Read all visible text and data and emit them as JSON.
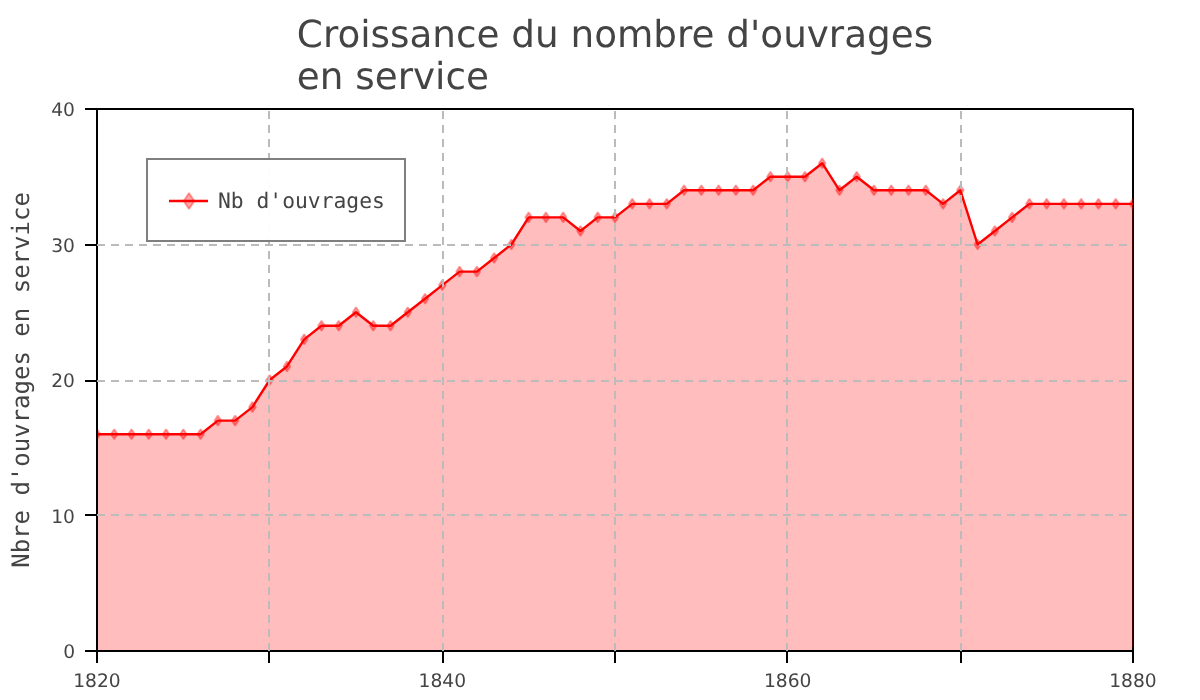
{
  "chart_data": {
    "type": "area",
    "title": "Croissance du nombre d'ouvrages\nen service",
    "ylabel": "Nbre d'ouvrages en service",
    "x": [
      1820,
      1821,
      1822,
      1823,
      1824,
      1825,
      1826,
      1827,
      1828,
      1829,
      1830,
      1831,
      1832,
      1833,
      1834,
      1835,
      1836,
      1837,
      1838,
      1839,
      1840,
      1841,
      1842,
      1843,
      1844,
      1845,
      1846,
      1847,
      1848,
      1849,
      1850,
      1851,
      1852,
      1853,
      1854,
      1855,
      1856,
      1857,
      1858,
      1859,
      1860,
      1861,
      1862,
      1863,
      1864,
      1865,
      1866,
      1867,
      1868,
      1869,
      1870,
      1871,
      1872,
      1873,
      1874,
      1875,
      1876,
      1877,
      1878,
      1879,
      1880
    ],
    "series": [
      {
        "name": "Nb d'ouvrages",
        "color": "#ff0000",
        "values": [
          16,
          16,
          16,
          16,
          16,
          16,
          16,
          17,
          17,
          18,
          20,
          21,
          23,
          24,
          24,
          25,
          24,
          24,
          25,
          26,
          27,
          28,
          28,
          29,
          30,
          32,
          32,
          32,
          31,
          32,
          32,
          33,
          33,
          33,
          34,
          34,
          34,
          34,
          34,
          35,
          35,
          35,
          36,
          34,
          35,
          34,
          34,
          34,
          34,
          33,
          34,
          30,
          31,
          32,
          33,
          33,
          33,
          33,
          33,
          33,
          33
        ]
      }
    ],
    "xlim": [
      1820,
      1880
    ],
    "ylim": [
      0,
      40
    ],
    "xticks": [
      1820,
      {
        "value": 1830,
        "label": null
      },
      1840,
      {
        "value": 1850,
        "label": null
      },
      1860,
      {
        "value": 1870,
        "label": null
      },
      1880
    ],
    "yticks": [
      0,
      10,
      20,
      30,
      40
    ],
    "grid": true,
    "legend": "top left",
    "marker": "diamond",
    "line_style": "solid"
  }
}
